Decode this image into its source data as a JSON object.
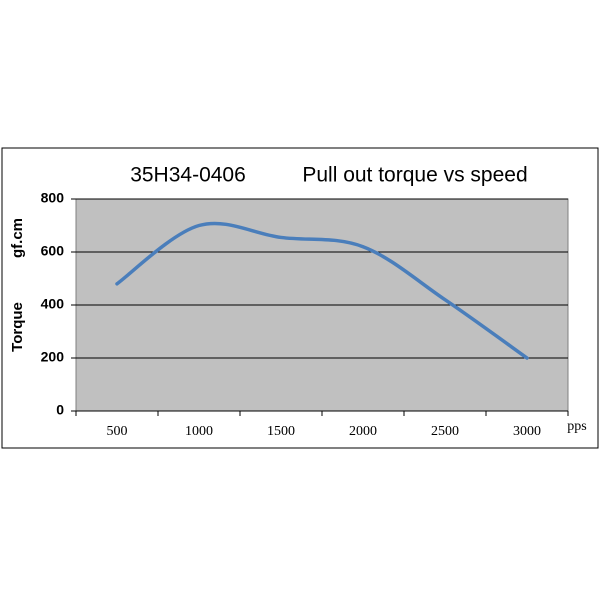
{
  "chart_data": {
    "type": "line",
    "model": "35H34-0406",
    "title": "Pull out torque vs speed",
    "y_label": "Torque",
    "y_unit": "gf.cm",
    "x_unit": "pps",
    "categories": [
      "500",
      "1000",
      "1500",
      "2000",
      "2500",
      "3000"
    ],
    "series": [
      {
        "name": "Torque",
        "color": "#4a7ebb",
        "values": [
          480,
          700,
          655,
          620,
          420,
          200
        ]
      }
    ],
    "ylim": [
      0,
      800
    ],
    "yticks": [
      0,
      200,
      400,
      600,
      800
    ],
    "grid": true,
    "plot_background": "#c0c0c0",
    "smooth": true
  }
}
